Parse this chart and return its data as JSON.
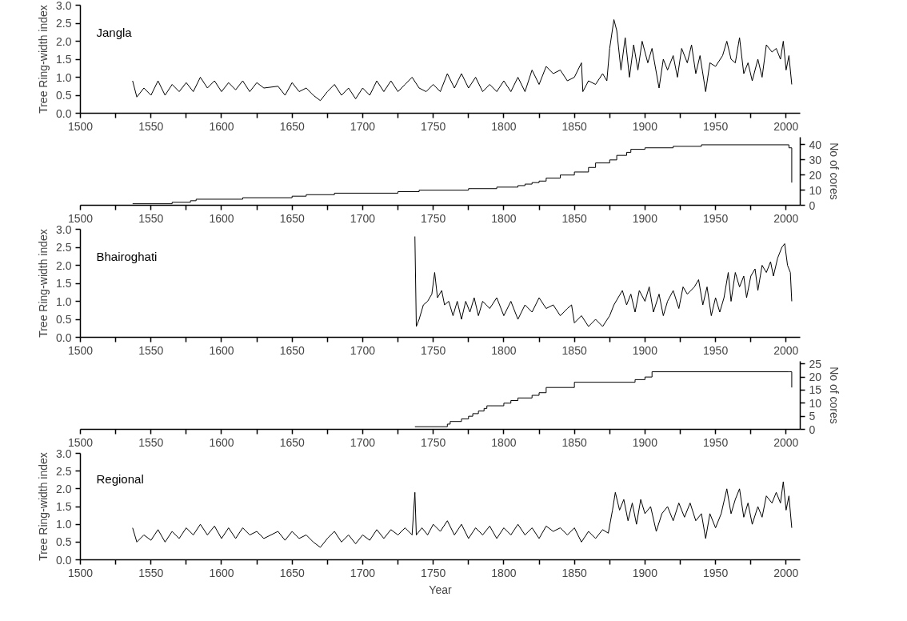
{
  "chart_data": [
    {
      "type": "line",
      "ylabel": "Tree Ring-width index",
      "annotations": [
        "Jangla"
      ],
      "xlim": [
        1500,
        2010
      ],
      "xticks": [
        1500,
        {
          "value": 1525,
          "label": null
        },
        1550,
        {
          "value": 1575,
          "label": null
        },
        1600,
        {
          "value": 1625,
          "label": null
        },
        1650,
        {
          "value": 1675,
          "label": null
        },
        1700,
        {
          "value": 1725,
          "label": null
        },
        1750,
        {
          "value": 1775,
          "label": null
        },
        1800,
        {
          "value": 1825,
          "label": null
        },
        1850,
        {
          "value": 1875,
          "label": null
        },
        1900,
        {
          "value": 1925,
          "label": null
        },
        1950,
        {
          "value": 1975,
          "label": null
        },
        2000
      ],
      "ylim": [
        0,
        3
      ],
      "yticks": [
        {
          "value": 0,
          "label": "0.0"
        },
        {
          "value": 0.5,
          "label": "0.5"
        },
        {
          "value": 1,
          "label": "1.0"
        },
        {
          "value": 1.5,
          "label": "1.5"
        },
        {
          "value": 2,
          "label": "2.0"
        },
        {
          "value": 2.5,
          "label": "2.5"
        },
        {
          "value": 3,
          "label": "3.0"
        }
      ],
      "series": [
        {
          "color": "#000000",
          "x": [
            1537,
            1540,
            1545,
            1550,
            1555,
            1560,
            1565,
            1570,
            1575,
            1580,
            1585,
            1590,
            1595,
            1600,
            1605,
            1610,
            1615,
            1620,
            1625,
            1630,
            1640,
            1645,
            1650,
            1655,
            1660,
            1665,
            1670,
            1675,
            1680,
            1685,
            1690,
            1695,
            1700,
            1705,
            1710,
            1715,
            1720,
            1725,
            1730,
            1735,
            1740,
            1745,
            1750,
            1755,
            1760,
            1765,
            1770,
            1775,
            1780,
            1785,
            1790,
            1795,
            1800,
            1805,
            1810,
            1815,
            1820,
            1825,
            1830,
            1835,
            1840,
            1845,
            1850,
            1855,
            1856,
            1860,
            1865,
            1870,
            1873,
            1875,
            1878,
            1880,
            1883,
            1886,
            1889,
            1892,
            1895,
            1898,
            1902,
            1905,
            1910,
            1913,
            1916,
            1920,
            1923,
            1926,
            1930,
            1933,
            1936,
            1939,
            1943,
            1946,
            1950,
            1955,
            1958,
            1961,
            1964,
            1967,
            1970,
            1973,
            1976,
            1980,
            1983,
            1986,
            1990,
            1993,
            1996,
            1998,
            2000,
            2002,
            2004
          ],
          "values": [
            0.9,
            0.45,
            0.7,
            0.5,
            0.9,
            0.5,
            0.8,
            0.6,
            0.85,
            0.6,
            1.0,
            0.7,
            0.9,
            0.6,
            0.85,
            0.65,
            0.9,
            0.6,
            0.85,
            0.7,
            0.75,
            0.5,
            0.85,
            0.6,
            0.7,
            0.5,
            0.35,
            0.6,
            0.8,
            0.5,
            0.7,
            0.4,
            0.7,
            0.5,
            0.9,
            0.6,
            0.9,
            0.6,
            0.8,
            1.0,
            0.7,
            0.6,
            0.8,
            0.6,
            1.1,
            0.7,
            1.1,
            0.7,
            1.0,
            0.6,
            0.8,
            0.6,
            0.9,
            0.6,
            1.0,
            0.6,
            1.2,
            0.8,
            1.3,
            1.1,
            1.2,
            0.9,
            1.0,
            1.4,
            0.6,
            0.9,
            0.8,
            1.1,
            0.9,
            1.8,
            2.6,
            2.3,
            1.2,
            2.1,
            1.0,
            1.9,
            1.2,
            2.0,
            1.4,
            1.8,
            0.7,
            1.5,
            1.2,
            1.6,
            1.0,
            1.8,
            1.4,
            1.9,
            1.1,
            1.6,
            0.6,
            1.4,
            1.3,
            1.6,
            2.0,
            1.5,
            1.4,
            2.1,
            1.1,
            1.4,
            0.9,
            1.5,
            1.0,
            1.9,
            1.7,
            1.8,
            1.5,
            2.0,
            1.2,
            1.6,
            0.8
          ]
        }
      ]
    },
    {
      "type": "step",
      "y2label": "No of cores",
      "xlim": [
        1500,
        2010
      ],
      "xticks": [
        1500,
        {
          "value": 1525,
          "label": null
        },
        1550,
        {
          "value": 1575,
          "label": null
        },
        1600,
        {
          "value": 1625,
          "label": null
        },
        1650,
        {
          "value": 1675,
          "label": null
        },
        1700,
        {
          "value": 1725,
          "label": null
        },
        1750,
        {
          "value": 1775,
          "label": null
        },
        1800,
        {
          "value": 1825,
          "label": null
        },
        1850,
        {
          "value": 1875,
          "label": null
        },
        1900,
        {
          "value": 1925,
          "label": null
        },
        1950,
        {
          "value": 1975,
          "label": null
        },
        2000
      ],
      "y2lim": [
        0,
        45
      ],
      "y2ticks": [
        0,
        10,
        20,
        30,
        40
      ],
      "series": [
        {
          "color": "#000000",
          "axis": "y2",
          "x": [
            1537,
            1565,
            1578,
            1582,
            1615,
            1650,
            1660,
            1680,
            1725,
            1740,
            1775,
            1795,
            1810,
            1815,
            1820,
            1825,
            1830,
            1840,
            1850,
            1860,
            1865,
            1875,
            1880,
            1887,
            1890,
            1900,
            1920,
            1940,
            2002,
            2004
          ],
          "values": [
            1,
            2,
            3,
            4,
            5,
            6,
            7,
            8,
            9,
            10,
            11,
            12,
            13,
            14,
            15,
            16,
            18,
            20,
            22,
            25,
            28,
            30,
            33,
            35,
            37,
            38,
            39,
            40,
            38,
            15
          ]
        }
      ]
    },
    {
      "type": "line",
      "ylabel": "Tree Ring-width index",
      "annotations": [
        "Bhairoghati"
      ],
      "xlim": [
        1500,
        2010
      ],
      "xticks": [
        1500,
        {
          "value": 1525,
          "label": null
        },
        1550,
        {
          "value": 1575,
          "label": null
        },
        1600,
        {
          "value": 1625,
          "label": null
        },
        1650,
        {
          "value": 1675,
          "label": null
        },
        1700,
        {
          "value": 1725,
          "label": null
        },
        1750,
        {
          "value": 1775,
          "label": null
        },
        1800,
        {
          "value": 1825,
          "label": null
        },
        1850,
        {
          "value": 1875,
          "label": null
        },
        1900,
        {
          "value": 1925,
          "label": null
        },
        1950,
        {
          "value": 1975,
          "label": null
        },
        2000
      ],
      "ylim": [
        0,
        3
      ],
      "yticks": [
        {
          "value": 0,
          "label": "0.0"
        },
        {
          "value": 0.5,
          "label": "0.5"
        },
        {
          "value": 1,
          "label": "1.0"
        },
        {
          "value": 1.5,
          "label": "1.5"
        },
        {
          "value": 2,
          "label": "2.0"
        },
        {
          "value": 2.5,
          "label": "2.5"
        },
        {
          "value": 3,
          "label": "3.0"
        }
      ],
      "series": [
        {
          "color": "#000000",
          "x": [
            1737,
            1738,
            1740,
            1743,
            1746,
            1749,
            1751,
            1753,
            1756,
            1758,
            1761,
            1764,
            1767,
            1770,
            1773,
            1776,
            1779,
            1782,
            1785,
            1790,
            1795,
            1800,
            1805,
            1810,
            1815,
            1820,
            1825,
            1830,
            1835,
            1840,
            1845,
            1848,
            1850,
            1855,
            1860,
            1865,
            1870,
            1875,
            1878,
            1881,
            1884,
            1887,
            1890,
            1893,
            1896,
            1900,
            1903,
            1906,
            1910,
            1913,
            1916,
            1920,
            1924,
            1927,
            1930,
            1935,
            1938,
            1941,
            1944,
            1947,
            1950,
            1953,
            1956,
            1959,
            1961,
            1964,
            1967,
            1970,
            1972,
            1975,
            1978,
            1980,
            1983,
            1986,
            1989,
            1991,
            1994,
            1997,
            1999,
            2001,
            2003,
            2004
          ],
          "values": [
            2.8,
            0.3,
            0.5,
            0.9,
            1.0,
            1.2,
            1.8,
            1.1,
            1.3,
            0.9,
            1.0,
            0.6,
            1.0,
            0.5,
            1.0,
            0.7,
            1.1,
            0.6,
            1.0,
            0.8,
            1.1,
            0.6,
            1.0,
            0.5,
            0.9,
            0.7,
            1.1,
            0.8,
            0.9,
            0.6,
            0.8,
            0.9,
            0.4,
            0.6,
            0.3,
            0.5,
            0.3,
            0.6,
            0.9,
            1.1,
            1.3,
            0.9,
            1.2,
            0.7,
            1.3,
            1.0,
            1.4,
            0.7,
            1.2,
            0.6,
            1.0,
            1.3,
            0.8,
            1.4,
            1.2,
            1.4,
            1.6,
            0.9,
            1.4,
            0.6,
            1.1,
            0.7,
            1.1,
            1.8,
            1.0,
            1.8,
            1.4,
            1.7,
            1.1,
            1.7,
            1.9,
            1.3,
            2.0,
            1.8,
            2.1,
            1.7,
            2.2,
            2.5,
            2.6,
            2.0,
            1.8,
            1.0
          ]
        }
      ]
    },
    {
      "type": "step",
      "y2label": "No of cores",
      "xlim": [
        1500,
        2010
      ],
      "xticks": [
        1500,
        {
          "value": 1525,
          "label": null
        },
        1550,
        {
          "value": 1575,
          "label": null
        },
        1600,
        {
          "value": 1625,
          "label": null
        },
        1650,
        {
          "value": 1675,
          "label": null
        },
        1700,
        {
          "value": 1725,
          "label": null
        },
        1750,
        {
          "value": 1775,
          "label": null
        },
        1800,
        {
          "value": 1825,
          "label": null
        },
        1850,
        {
          "value": 1875,
          "label": null
        },
        1900,
        {
          "value": 1925,
          "label": null
        },
        1950,
        {
          "value": 1975,
          "label": null
        },
        2000
      ],
      "y2lim": [
        0,
        26
      ],
      "y2ticks": [
        0,
        5,
        10,
        15,
        20,
        25
      ],
      "series": [
        {
          "color": "#000000",
          "axis": "y2",
          "x": [
            1737,
            1760,
            1762,
            1770,
            1775,
            1778,
            1782,
            1786,
            1788,
            1800,
            1805,
            1810,
            1820,
            1825,
            1830,
            1850,
            1893,
            1900,
            1905,
            2002,
            2004
          ],
          "values": [
            1,
            2,
            3,
            4,
            5,
            6,
            7,
            8,
            9,
            10,
            11,
            12,
            13,
            14,
            16,
            18,
            19,
            20,
            22,
            22,
            16
          ]
        }
      ]
    },
    {
      "type": "line",
      "ylabel": "Tree Ring-width index",
      "xlabel": "Year",
      "annotations": [
        "Regional"
      ],
      "xlim": [
        1500,
        2010
      ],
      "xticks": [
        1500,
        {
          "value": 1525,
          "label": null
        },
        1550,
        {
          "value": 1575,
          "label": null
        },
        1600,
        {
          "value": 1625,
          "label": null
        },
        1650,
        {
          "value": 1675,
          "label": null
        },
        1700,
        {
          "value": 1725,
          "label": null
        },
        1750,
        {
          "value": 1775,
          "label": null
        },
        1800,
        {
          "value": 1825,
          "label": null
        },
        1850,
        {
          "value": 1875,
          "label": null
        },
        1900,
        {
          "value": 1925,
          "label": null
        },
        1950,
        {
          "value": 1975,
          "label": null
        },
        2000
      ],
      "ylim": [
        0,
        3
      ],
      "yticks": [
        {
          "value": 0,
          "label": "0.0"
        },
        {
          "value": 0.5,
          "label": "0.5"
        },
        {
          "value": 1,
          "label": "1.0"
        },
        {
          "value": 1.5,
          "label": "1.5"
        },
        {
          "value": 2,
          "label": "2.0"
        },
        {
          "value": 2.5,
          "label": "2.5"
        },
        {
          "value": 3,
          "label": "3.0"
        }
      ],
      "series": [
        {
          "color": "#000000",
          "x": [
            1537,
            1540,
            1545,
            1550,
            1555,
            1560,
            1565,
            1570,
            1575,
            1580,
            1585,
            1590,
            1595,
            1600,
            1605,
            1610,
            1615,
            1620,
            1625,
            1630,
            1640,
            1645,
            1650,
            1655,
            1660,
            1665,
            1670,
            1675,
            1680,
            1685,
            1690,
            1695,
            1700,
            1705,
            1710,
            1715,
            1720,
            1725,
            1730,
            1735,
            1737,
            1738,
            1742,
            1746,
            1750,
            1755,
            1760,
            1765,
            1770,
            1775,
            1780,
            1785,
            1790,
            1795,
            1800,
            1805,
            1810,
            1815,
            1820,
            1825,
            1830,
            1835,
            1840,
            1845,
            1850,
            1855,
            1860,
            1865,
            1870,
            1874,
            1877,
            1879,
            1882,
            1885,
            1888,
            1891,
            1894,
            1897,
            1900,
            1904,
            1908,
            1912,
            1916,
            1920,
            1924,
            1928,
            1932,
            1936,
            1940,
            1943,
            1946,
            1950,
            1954,
            1958,
            1961,
            1964,
            1967,
            1970,
            1973,
            1976,
            1980,
            1983,
            1986,
            1990,
            1993,
            1996,
            1998,
            2000,
            2002,
            2004
          ],
          "values": [
            0.9,
            0.5,
            0.7,
            0.55,
            0.85,
            0.5,
            0.8,
            0.6,
            0.9,
            0.7,
            1.0,
            0.7,
            0.95,
            0.6,
            0.9,
            0.6,
            0.9,
            0.7,
            0.8,
            0.6,
            0.8,
            0.55,
            0.8,
            0.6,
            0.7,
            0.5,
            0.35,
            0.6,
            0.8,
            0.5,
            0.7,
            0.45,
            0.7,
            0.55,
            0.85,
            0.6,
            0.85,
            0.7,
            0.9,
            0.7,
            1.9,
            0.7,
            0.9,
            0.7,
            1.0,
            0.8,
            1.1,
            0.7,
            1.0,
            0.6,
            0.9,
            0.7,
            0.95,
            0.6,
            0.9,
            0.7,
            1.0,
            0.7,
            0.9,
            0.6,
            0.95,
            0.8,
            0.9,
            0.7,
            0.9,
            0.5,
            0.8,
            0.6,
            0.85,
            0.75,
            1.4,
            1.9,
            1.4,
            1.7,
            1.1,
            1.6,
            1.0,
            1.7,
            1.3,
            1.5,
            0.8,
            1.3,
            1.5,
            1.1,
            1.6,
            1.2,
            1.6,
            1.1,
            1.3,
            0.6,
            1.3,
            0.9,
            1.3,
            2.0,
            1.3,
            1.7,
            2.0,
            1.2,
            1.6,
            1.0,
            1.5,
            1.2,
            1.8,
            1.6,
            1.9,
            1.6,
            2.2,
            1.4,
            1.8,
            0.9
          ]
        }
      ]
    }
  ]
}
